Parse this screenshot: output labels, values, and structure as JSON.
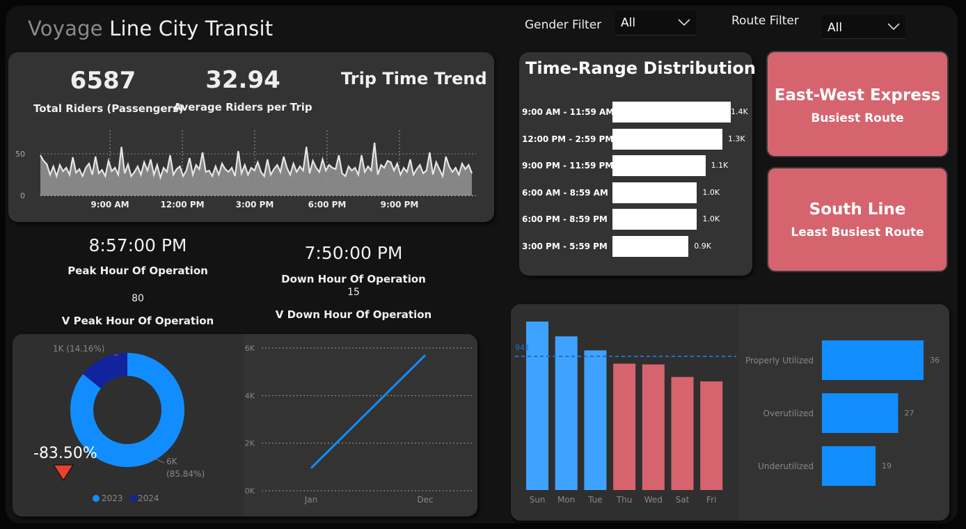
{
  "header": {
    "title_dim": "Voyage",
    "title_rest": " Line City Transit",
    "gender_filter_label": "Gender Filter",
    "gender_filter_value": "All",
    "route_filter_label": "Route Filter",
    "route_filter_value": "All"
  },
  "kpis": {
    "total_riders_value": "6587",
    "total_riders_label": "Total Riders (Passengers)",
    "avg_riders_value": "32.94",
    "avg_riders_label": "Average Riders per Trip",
    "trend_title": "Trip Time Trend"
  },
  "peak": {
    "peak_time": "8:57:00 PM",
    "peak_label": "Peak Hour Of Operation",
    "peak_value": "80",
    "peak_value_label": "V Peak Hour Of Operation",
    "down_time": "7:50:00 PM",
    "down_label": "Down Hour Of Operation",
    "down_value": "15",
    "down_value_label": "V Down Hour Of Operation"
  },
  "cards": {
    "busiest_route": "East-West Express",
    "busiest_label": "Busiest Route",
    "least_route": "South Line",
    "least_label": "Least Busiest Route"
  },
  "time_range": {
    "title": "Time-Range Distribution",
    "rows": [
      {
        "label": "9:00 AM - 11:59 AM",
        "value": 1.4,
        "text": "1.4K"
      },
      {
        "label": "12:00 PM - 2:59 PM",
        "value": 1.3,
        "text": "1.3K"
      },
      {
        "label": "9:00 PM - 11:59 PM",
        "value": 1.1,
        "text": "1.1K"
      },
      {
        "label": "6:00 AM - 8:59 AM",
        "value": 1.0,
        "text": "1.0K"
      },
      {
        "label": "6:00 PM - 8:59 PM",
        "value": 1.0,
        "text": "1.0K"
      },
      {
        "label": "3:00 PM - 5:59 PM",
        "value": 0.9,
        "text": "0.9K"
      }
    ]
  },
  "donut": {
    "change_value": "-83.50%",
    "label_2024": "1K (14.16%)",
    "label_2023_a": "6K",
    "label_2023_b": "(85.84%)",
    "legend": [
      "2023",
      "2024"
    ]
  },
  "colors": {
    "blue": "#118dff",
    "darkblue": "#12239e",
    "red": "#d6646f",
    "lightblue": "#3fa2ff",
    "arrow_red": "#e8412c"
  },
  "chart_data": [
    {
      "type": "area",
      "title": "Trip Time Trend",
      "x_ticks": [
        "9:00 AM",
        "12:00 PM",
        "3:00 PM",
        "6:00 PM",
        "9:00 PM"
      ],
      "y_ticks": [
        "0",
        "50"
      ],
      "ylim": [
        0,
        100
      ],
      "values": [
        58,
        50,
        45,
        30,
        42,
        28,
        44,
        35,
        40,
        30,
        55,
        33,
        38,
        28,
        40,
        46,
        30,
        56,
        32,
        37,
        28,
        50,
        35,
        40,
        30,
        70,
        32,
        45,
        28,
        34,
        42,
        30,
        48,
        36,
        52,
        30,
        44,
        26,
        40,
        34,
        58,
        30,
        38,
        42,
        28,
        36,
        54,
        30,
        44,
        38,
        62,
        34,
        36,
        28,
        42,
        30,
        46,
        38,
        34,
        40,
        28,
        64,
        32,
        44,
        30,
        40,
        36,
        48,
        34,
        28,
        52,
        30,
        38,
        44,
        34,
        56,
        40,
        30,
        46,
        34,
        42,
        36,
        70,
        32,
        50,
        40,
        34,
        52,
        36,
        44,
        40,
        38,
        58,
        32,
        28,
        42,
        36,
        40,
        30,
        58,
        34,
        42,
        36,
        76,
        30,
        44,
        40,
        50,
        48,
        36,
        46,
        30,
        40,
        34,
        52,
        30,
        38,
        44,
        32,
        36,
        62,
        30,
        48,
        38,
        28,
        56,
        42,
        34,
        40,
        30,
        46,
        38,
        44,
        32
      ]
    },
    {
      "type": "pie",
      "series": [
        {
          "name": "2023",
          "value": 85.84
        },
        {
          "name": "2024",
          "value": 14.16
        }
      ]
    },
    {
      "type": "line",
      "categories": [
        "Jan",
        "Dec"
      ],
      "values": [
        950,
        5700
      ],
      "y_ticks": [
        "0K",
        "2K",
        "4K",
        "6K"
      ],
      "ylim": [
        0,
        6000
      ],
      "grid": true
    },
    {
      "type": "bar",
      "categories": [
        "Sun",
        "Mon",
        "Tue",
        "Thu",
        "Wed",
        "Sat",
        "Fri"
      ],
      "values": [
        1140,
        1040,
        945,
        855,
        850,
        765,
        735
      ],
      "reference_line": 941,
      "reference_label": "941"
    },
    {
      "type": "bar",
      "orientation": "horizontal",
      "categories": [
        "Properly Utilized",
        "Overutilized",
        "Underutilized"
      ],
      "values": [
        36,
        27,
        19
      ]
    }
  ]
}
